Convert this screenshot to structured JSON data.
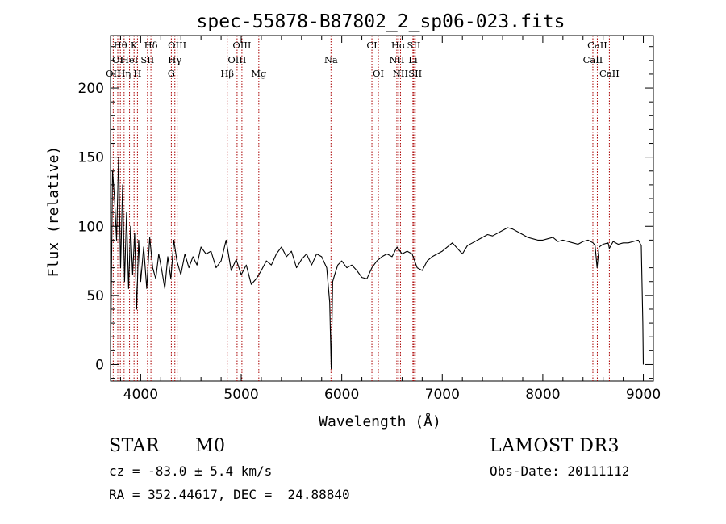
{
  "chart_data": {
    "type": "line",
    "title": "spec-55878-B87802_2_sp06-023.fits",
    "xlabel": "Wavelength (Å)",
    "ylabel": "Flux (relative)",
    "xlim": [
      3700,
      9100
    ],
    "ylim": [
      -12,
      238
    ],
    "xticks": [
      4000,
      5000,
      6000,
      7000,
      8000,
      9000
    ],
    "yticks": [
      0,
      50,
      100,
      150,
      200
    ],
    "xtick_labels": [
      "4000",
      "5000",
      "6000",
      "7000",
      "8000",
      "9000"
    ],
    "ytick_labels": [
      "0",
      "50",
      "100",
      "150",
      "200"
    ],
    "line_color": "#000000",
    "marker_color": "#aa0000",
    "spectrum": {
      "x": [
        3700,
        3720,
        3740,
        3760,
        3780,
        3800,
        3820,
        3840,
        3860,
        3880,
        3900,
        3920,
        3940,
        3960,
        3980,
        4000,
        4030,
        4060,
        4090,
        4120,
        4150,
        4180,
        4210,
        4240,
        4270,
        4300,
        4330,
        4360,
        4400,
        4440,
        4480,
        4520,
        4560,
        4600,
        4650,
        4700,
        4750,
        4800,
        4850,
        4900,
        4950,
        5000,
        5050,
        5100,
        5150,
        5200,
        5250,
        5300,
        5350,
        5400,
        5450,
        5500,
        5550,
        5600,
        5650,
        5700,
        5750,
        5800,
        5850,
        5880,
        5895,
        5910,
        5930,
        5960,
        6000,
        6050,
        6100,
        6150,
        6200,
        6250,
        6300,
        6350,
        6400,
        6450,
        6500,
        6550,
        6600,
        6650,
        6700,
        6750,
        6800,
        6850,
        6900,
        6950,
        7000,
        7050,
        7100,
        7150,
        7200,
        7250,
        7300,
        7350,
        7400,
        7450,
        7500,
        7550,
        7600,
        7650,
        7700,
        7750,
        7800,
        7850,
        7900,
        7950,
        8000,
        8050,
        8100,
        8150,
        8200,
        8250,
        8300,
        8350,
        8400,
        8450,
        8500,
        8520,
        8540,
        8560,
        8600,
        8650,
        8662,
        8700,
        8750,
        8800,
        8850,
        8900,
        8950,
        8980,
        8995,
        9000
      ],
      "y": [
        0,
        140,
        120,
        90,
        150,
        70,
        130,
        60,
        110,
        55,
        100,
        65,
        95,
        40,
        90,
        60,
        85,
        55,
        92,
        70,
        62,
        80,
        68,
        55,
        78,
        62,
        90,
        75,
        65,
        80,
        70,
        78,
        72,
        85,
        80,
        82,
        70,
        75,
        90,
        68,
        76,
        65,
        72,
        58,
        62,
        68,
        75,
        72,
        80,
        85,
        78,
        82,
        70,
        76,
        80,
        72,
        80,
        78,
        70,
        45,
        -3,
        60,
        65,
        72,
        75,
        70,
        72,
        68,
        63,
        62,
        70,
        75,
        78,
        80,
        78,
        85,
        80,
        82,
        80,
        70,
        68,
        75,
        78,
        80,
        82,
        85,
        88,
        84,
        80,
        86,
        88,
        90,
        92,
        94,
        93,
        95,
        97,
        99,
        98,
        96,
        94,
        92,
        91,
        90,
        90,
        91,
        92,
        89,
        90,
        89,
        88,
        87,
        89,
        90,
        88,
        86,
        70,
        85,
        87,
        88,
        84,
        89,
        87,
        88,
        88,
        89,
        90,
        86,
        30,
        0
      ]
    },
    "spectral_lines": [
      {
        "label": "OΙΙ",
        "wavelength": 3727,
        "row": 2
      },
      {
        "label": "Hθ",
        "wavelength": 3798,
        "row": 0
      },
      {
        "label": "OΙ",
        "wavelength": 3772,
        "row": 1
      },
      {
        "label": "K",
        "wavelength": 3934,
        "row": 0
      },
      {
        "label": "HeI",
        "wavelength": 3889,
        "row": 1
      },
      {
        "label": "Hη",
        "wavelength": 3835,
        "row": 2
      },
      {
        "label": "SII",
        "wavelength": 4068,
        "row": 1
      },
      {
        "label": "H",
        "wavelength": 3968,
        "row": 2
      },
      {
        "label": "Hδ",
        "wavelength": 4102,
        "row": 0
      },
      {
        "label": "OΙΙΙ",
        "wavelength": 4363,
        "row": 0
      },
      {
        "label": "Hγ",
        "wavelength": 4340,
        "row": 1
      },
      {
        "label": "G",
        "wavelength": 4305,
        "row": 2
      },
      {
        "label": "OΙΙΙ",
        "wavelength": 5007,
        "row": 0
      },
      {
        "label": "OΙΙΙ",
        "wavelength": 4959,
        "row": 1
      },
      {
        "label": "Hβ",
        "wavelength": 4861,
        "row": 2
      },
      {
        "label": "Mg",
        "wavelength": 5175,
        "row": 2
      },
      {
        "label": "Na",
        "wavelength": 5893,
        "row": 1
      },
      {
        "label": "CΙ",
        "wavelength": 6300,
        "row": 0
      },
      {
        "label": "OΙ",
        "wavelength": 6364,
        "row": 2
      },
      {
        "label": "Hα",
        "wavelength": 6563,
        "row": 0
      },
      {
        "label": "NΙΙ",
        "wavelength": 6548,
        "row": 1
      },
      {
        "label": "NΙΙ",
        "wavelength": 6584,
        "row": 2
      },
      {
        "label": "SII",
        "wavelength": 6717,
        "row": 0
      },
      {
        "label": "Li",
        "wavelength": 6708,
        "row": 1
      },
      {
        "label": "SII",
        "wavelength": 6731,
        "row": 2
      },
      {
        "label": "CaII",
        "wavelength": 8542,
        "row": 0
      },
      {
        "label": "CaII",
        "wavelength": 8498,
        "row": 1
      },
      {
        "label": "CaII",
        "wavelength": 8662,
        "row": 2
      }
    ]
  },
  "info": {
    "class": "STAR",
    "subclass": "M0",
    "survey": "LAMOST DR3",
    "cz": "cz = -83.0 ± 5.4 km/s",
    "obs_date": "Obs-Date: 20111112",
    "coords": "RA = 352.44617, DEC =  24.88840"
  }
}
